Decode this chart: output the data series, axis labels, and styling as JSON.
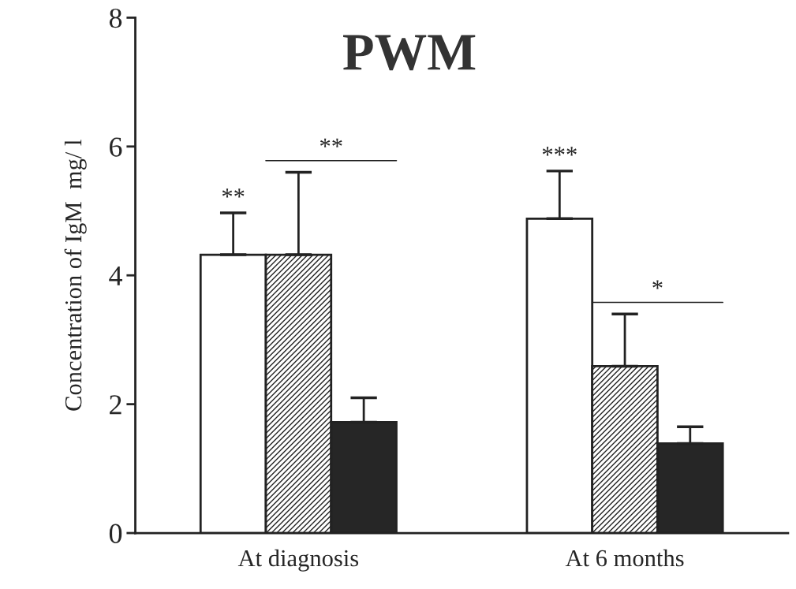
{
  "chart_data": {
    "type": "bar",
    "title": "PWM",
    "ylabel": "Concentration of IgM  mg/ l",
    "categories": [
      "At diagnosis",
      "At 6 months"
    ],
    "series": [
      {
        "color": "#ffffff",
        "values": [
          4.32,
          4.88
        ],
        "errors": [
          0.65,
          0.74
        ]
      },
      {
        "color": "#222222",
        "values": [
          4.32,
          2.59
        ],
        "errors": [
          1.28,
          0.81
        ]
      },
      {
        "color": "#262626",
        "values": [
          1.72,
          1.39
        ],
        "errors": [
          0.38,
          0.26
        ]
      }
    ],
    "annotations": [
      "**",
      "**",
      "***",
      "*"
    ],
    "ylim": [
      0,
      8
    ],
    "yticks": [
      0,
      2,
      4,
      6,
      8
    ],
    "grid": false,
    "legend": false
  }
}
